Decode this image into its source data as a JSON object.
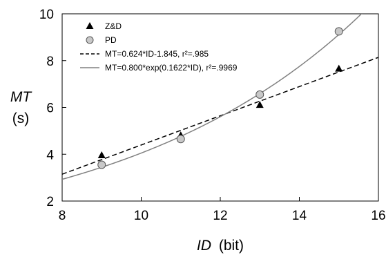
{
  "chart_data": {
    "type": "scatter",
    "title": "",
    "xlabel": {
      "var": "ID",
      "unit": "(bit)"
    },
    "ylabel": {
      "var": "MT",
      "unit": "(s)"
    },
    "xlim": [
      8,
      16
    ],
    "ylim": [
      2,
      10
    ],
    "xticks": [
      "8",
      "10",
      "12",
      "14",
      "16"
    ],
    "yticks": [
      "2",
      "4",
      "6",
      "8",
      "10"
    ],
    "grid": false,
    "legend_position": "top-left",
    "series": [
      {
        "name": "Z&D",
        "kind": "points",
        "marker": "triangle",
        "color": "#000000",
        "x": [
          9,
          11,
          13,
          15
        ],
        "y": [
          3.95,
          4.8,
          6.1,
          7.65
        ]
      },
      {
        "name": "PD",
        "kind": "points",
        "marker": "circle",
        "color": "#c8c8c8",
        "x": [
          9,
          11,
          13,
          15
        ],
        "y": [
          3.55,
          4.65,
          6.55,
          9.25
        ]
      },
      {
        "name": "MT=0.624*ID-1.845, r²=.985",
        "kind": "linear-fit",
        "color": "#000000",
        "dash": true,
        "slope": 0.624,
        "intercept": -1.845
      },
      {
        "name": "MT=0.800*exp(0.1622*ID), r²=.9969",
        "kind": "exp-fit",
        "color": "#808080",
        "dash": false,
        "a": 0.8,
        "b": 0.1622
      }
    ]
  }
}
